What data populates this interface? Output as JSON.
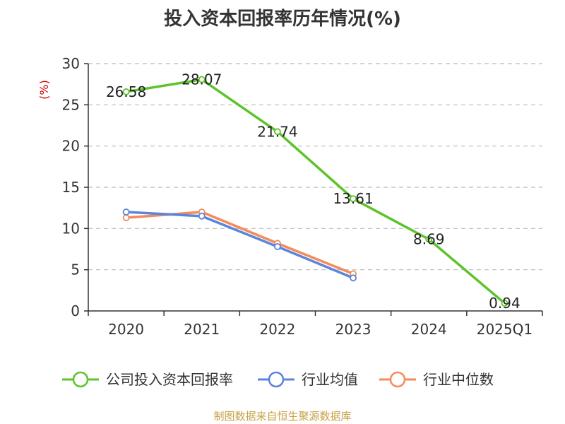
{
  "chart_data": {
    "type": "line",
    "title": "投入资本回报率历年情况(%)",
    "ylabel": "(%)",
    "categories": [
      "2020",
      "2021",
      "2022",
      "2023",
      "2024",
      "2025Q1"
    ],
    "ylim": [
      0,
      30
    ],
    "yticks": [
      0,
      5,
      10,
      15,
      20,
      25,
      30
    ],
    "grid": true,
    "legend_position": "bottom",
    "series": [
      {
        "name": "公司投入资本回报率",
        "color": "#5cc42a",
        "values": [
          26.58,
          28.07,
          21.74,
          13.61,
          8.69,
          0.94
        ],
        "labels": [
          "26.58",
          "28.07",
          "21.74",
          "13.61",
          "8.69",
          "0.94"
        ]
      },
      {
        "name": "行业均值",
        "color": "#5b84dc",
        "values": [
          12.0,
          11.5,
          7.8,
          4.0,
          null,
          null
        ]
      },
      {
        "name": "行业中位数",
        "color": "#f38b5a",
        "values": [
          11.3,
          12.0,
          8.2,
          4.5,
          null,
          null
        ]
      }
    ]
  },
  "source_note": "制图数据来自恒生聚源数据库",
  "colors": {
    "axis": "#333333",
    "grid": "#bbbbbb",
    "ylabel": "#cc0000",
    "source": "#c8a046"
  }
}
